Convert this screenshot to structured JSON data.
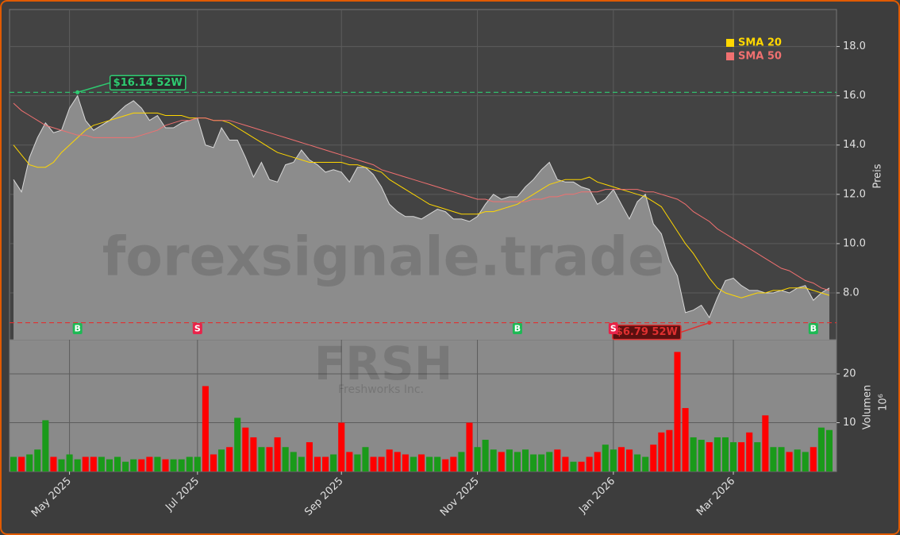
{
  "chart_data": {
    "type": "line",
    "watermark": "forexsignale.trade",
    "symbol": "FRSH",
    "company": "Freshworks Inc.",
    "y_label": "Preis",
    "y2_label": "Volumen",
    "y2_offset": "10⁶",
    "xlim": [
      -0.5,
      102.5
    ],
    "xticks": [
      {
        "value": 7,
        "label": "May 2025"
      },
      {
        "value": 23,
        "label": "Jul 2025"
      },
      {
        "value": 41,
        "label": "Sep 2025"
      },
      {
        "value": 58,
        "label": "Nov 2025"
      },
      {
        "value": 75,
        "label": "Jan 2026"
      },
      {
        "value": 90,
        "label": "Mar 2026"
      }
    ],
    "ylim": [
      6.1,
      19.5
    ],
    "yticks": [
      {
        "value": 8,
        "label": "8.0"
      },
      {
        "value": 10,
        "label": "10.0"
      },
      {
        "value": 12,
        "label": "12.0"
      },
      {
        "value": 14,
        "label": "14.0"
      },
      {
        "value": 16,
        "label": "16.0"
      },
      {
        "value": 18,
        "label": "18.0"
      }
    ],
    "y2lim": [
      0,
      27
    ],
    "y2ticks": [
      10,
      20
    ],
    "grid": true,
    "legend": "upper right",
    "price": {
      "color": "#8c8c8c",
      "line_color": "#d8d8d8",
      "values": [
        12.6,
        12.1,
        13.5,
        14.3,
        14.9,
        14.5,
        14.6,
        15.5,
        16.0,
        15.0,
        14.6,
        14.8,
        15.0,
        15.3,
        15.6,
        15.8,
        15.5,
        15.0,
        15.2,
        14.7,
        14.7,
        14.9,
        15.0,
        15.1,
        14.0,
        13.9,
        14.7,
        14.2,
        14.2,
        13.5,
        12.7,
        13.3,
        12.6,
        12.5,
        13.2,
        13.3,
        13.8,
        13.4,
        13.2,
        12.9,
        13.0,
        12.9,
        12.5,
        13.1,
        13.1,
        12.8,
        12.3,
        11.6,
        11.3,
        11.1,
        11.1,
        11.0,
        11.2,
        11.4,
        11.3,
        11.0,
        11.0,
        10.9,
        11.1,
        11.6,
        12.0,
        11.8,
        11.9,
        11.9,
        12.3,
        12.6,
        13.0,
        13.3,
        12.6,
        12.5,
        12.5,
        12.3,
        12.2,
        11.6,
        11.8,
        12.2,
        11.6,
        11.0,
        11.7,
        12.0,
        10.8,
        10.4,
        9.3,
        8.7,
        7.2,
        7.3,
        7.5,
        7.0,
        7.8,
        8.5,
        8.6,
        8.3,
        8.1,
        8.1,
        8.0,
        8.0,
        8.1,
        8.0,
        8.2,
        8.3,
        7.7,
        8.0,
        8.2
      ]
    },
    "series": [
      {
        "name": "SMA 20",
        "color": "#ffd700",
        "values": [
          14.0,
          13.6,
          13.2,
          13.1,
          13.1,
          13.3,
          13.7,
          14.0,
          14.3,
          14.6,
          14.8,
          14.9,
          15.0,
          15.1,
          15.2,
          15.3,
          15.3,
          15.3,
          15.3,
          15.2,
          15.2,
          15.2,
          15.1,
          15.1,
          15.1,
          15.0,
          15.0,
          14.9,
          14.7,
          14.5,
          14.3,
          14.1,
          13.9,
          13.7,
          13.6,
          13.5,
          13.4,
          13.3,
          13.3,
          13.3,
          13.3,
          13.3,
          13.2,
          13.2,
          13.1,
          13.0,
          12.9,
          12.6,
          12.4,
          12.2,
          12.0,
          11.8,
          11.6,
          11.5,
          11.4,
          11.3,
          11.2,
          11.2,
          11.2,
          11.3,
          11.3,
          11.4,
          11.5,
          11.6,
          11.8,
          12.0,
          12.2,
          12.4,
          12.5,
          12.6,
          12.6,
          12.6,
          12.7,
          12.5,
          12.4,
          12.3,
          12.2,
          12.1,
          12.0,
          11.9,
          11.7,
          11.5,
          11.0,
          10.5,
          10.0,
          9.6,
          9.1,
          8.6,
          8.2,
          8.0,
          7.9,
          7.8,
          7.9,
          8.0,
          8.0,
          8.1,
          8.1,
          8.2,
          8.2,
          8.2,
          8.1,
          8.0,
          7.9
        ]
      },
      {
        "name": "SMA 50",
        "color": "#f07070",
        "values": [
          15.7,
          15.4,
          15.2,
          15.0,
          14.8,
          14.7,
          14.6,
          14.5,
          14.4,
          14.4,
          14.3,
          14.3,
          14.3,
          14.3,
          14.3,
          14.3,
          14.4,
          14.5,
          14.6,
          14.8,
          14.9,
          15.0,
          15.0,
          15.1,
          15.1,
          15.0,
          15.0,
          15.0,
          14.9,
          14.8,
          14.7,
          14.6,
          14.5,
          14.4,
          14.3,
          14.2,
          14.1,
          14.0,
          13.9,
          13.8,
          13.7,
          13.6,
          13.5,
          13.4,
          13.3,
          13.2,
          13.0,
          12.9,
          12.8,
          12.7,
          12.6,
          12.5,
          12.4,
          12.3,
          12.2,
          12.1,
          12.0,
          11.9,
          11.8,
          11.8,
          11.7,
          11.7,
          11.7,
          11.7,
          11.7,
          11.8,
          11.8,
          11.9,
          11.9,
          12.0,
          12.0,
          12.1,
          12.1,
          12.1,
          12.2,
          12.2,
          12.2,
          12.2,
          12.2,
          12.1,
          12.1,
          12.0,
          11.9,
          11.8,
          11.6,
          11.3,
          11.1,
          10.9,
          10.6,
          10.4,
          10.2,
          10.0,
          9.8,
          9.6,
          9.4,
          9.2,
          9.0,
          8.9,
          8.7,
          8.5,
          8.4,
          8.2,
          8.1
        ]
      }
    ],
    "volume": {
      "axis": "y2",
      "up_color": "#1a9a1a",
      "down_color": "#ff0000",
      "values": [
        3,
        3,
        3.5,
        4.5,
        10.5,
        3,
        2.5,
        3.5,
        2.5,
        3,
        3,
        3,
        2.5,
        3,
        2,
        2.5,
        2.5,
        3,
        3,
        2.5,
        2.5,
        2.5,
        3,
        3,
        17.5,
        3.5,
        4.5,
        5,
        11,
        9,
        7,
        5,
        5,
        7,
        5,
        4,
        3,
        6,
        3,
        3,
        3.5,
        10,
        4,
        3.5,
        5,
        3,
        3,
        4.5,
        4,
        3.5,
        3,
        3.5,
        3,
        3,
        2.5,
        3,
        4,
        10,
        5,
        6.5,
        4.5,
        4,
        4.5,
        4,
        4.5,
        3.5,
        3.5,
        4,
        4.5,
        3,
        2,
        2,
        3,
        4,
        5.5,
        4.5,
        5,
        4.5,
        3.5,
        3,
        5.5,
        8,
        8.5,
        24.5,
        13,
        7,
        6.5,
        6,
        7,
        7,
        6,
        6,
        8,
        6,
        11.5,
        5,
        5,
        4,
        4.5,
        4,
        5,
        9,
        8.5
      ]
    },
    "annotations": [
      {
        "text": "$16.14 52W",
        "value": 16.14,
        "index": 8,
        "color": "#2ecc71"
      },
      {
        "text": "$6.79 52W",
        "value": 6.79,
        "index": 87,
        "color": "#e03030"
      }
    ],
    "signals": [
      {
        "label": "B",
        "index": 8,
        "color": "#1db954"
      },
      {
        "label": "S",
        "index": 23,
        "color": "#e8234a"
      },
      {
        "label": "B",
        "index": 63,
        "color": "#1db954"
      },
      {
        "label": "S",
        "index": 75,
        "color": "#e8234a"
      },
      {
        "label": "B",
        "index": 100,
        "color": "#1db954"
      }
    ]
  }
}
